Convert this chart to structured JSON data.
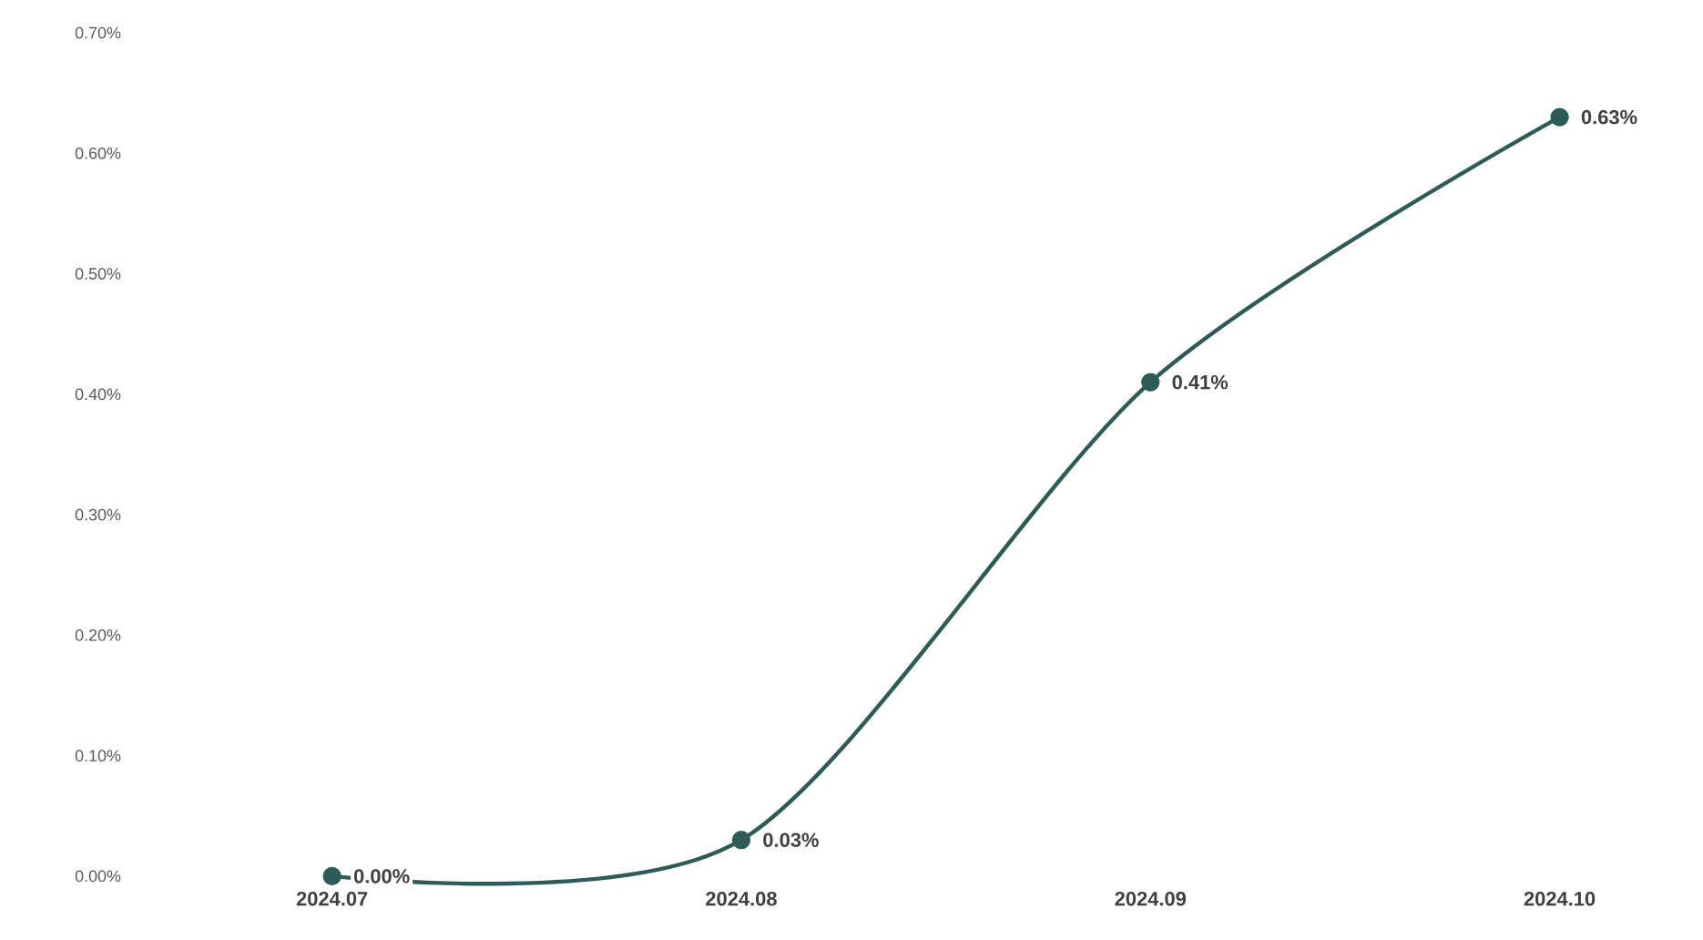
{
  "chart_data": {
    "type": "line",
    "categories": [
      "2024.07",
      "2024.08",
      "2024.09",
      "2024.10"
    ],
    "values": [
      0.0,
      0.03,
      0.41,
      0.63
    ],
    "value_labels": [
      "0.00%",
      "0.03%",
      "0.41%",
      "0.63%"
    ],
    "color": "#2e5b57",
    "marker": "circle",
    "ylim": [
      0,
      0.7
    ],
    "yticks": [
      {
        "value": 0,
        "label": "0.00%"
      },
      {
        "value": 0.1,
        "label": "0.10%"
      },
      {
        "value": 0.2,
        "label": "0.20%"
      },
      {
        "value": 0.3,
        "label": "0.30%"
      },
      {
        "value": 0.4,
        "label": "0.40%"
      },
      {
        "value": 0.5,
        "label": "0.50%"
      },
      {
        "value": 0.6,
        "label": "0.60%"
      },
      {
        "value": 0.7,
        "label": "0.70%"
      }
    ]
  }
}
